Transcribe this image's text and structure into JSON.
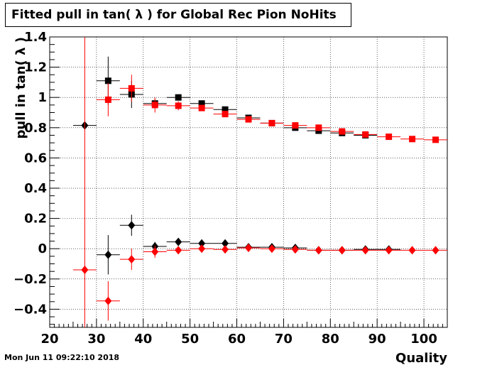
{
  "title": "Fitted pull in tan( λ ) for Global Rec Pion NoHits",
  "timestamp": "Mon Jun 11 09:22:10 2018",
  "chart_data": {
    "type": "scatter",
    "xlabel": "Quality",
    "ylabel": "pull in tan( λ )",
    "xlim": [
      20,
      105
    ],
    "ylim": [
      -0.52,
      1.4
    ],
    "x_ticks": [
      "20",
      "30",
      "40",
      "50",
      "60",
      "70",
      "80",
      "90",
      "100"
    ],
    "y_ticks": [
      "−0.4",
      "−0.2",
      "0",
      "0.2",
      "0.4",
      "0.6",
      "0.8",
      "1",
      "1.2",
      "1.4"
    ],
    "grid": true,
    "series": [
      {
        "marker": "square",
        "color": "#000000",
        "points": [
          {
            "x": 32.5,
            "y": 1.11,
            "yerr": 0.16
          },
          {
            "x": 37.5,
            "y": 1.02,
            "yerr": 0.09
          },
          {
            "x": 42.5,
            "y": 0.96,
            "yerr": 0.03
          },
          {
            "x": 47.5,
            "y": 1.0,
            "yerr": 0.02
          },
          {
            "x": 52.5,
            "y": 0.96,
            "yerr": 0.015
          },
          {
            "x": 57.5,
            "y": 0.92,
            "yerr": 0.015
          },
          {
            "x": 62.5,
            "y": 0.865,
            "yerr": 0.01
          },
          {
            "x": 67.5,
            "y": 0.83,
            "yerr": 0.01
          },
          {
            "x": 72.5,
            "y": 0.8,
            "yerr": 0.01
          },
          {
            "x": 77.5,
            "y": 0.78,
            "yerr": 0.01
          },
          {
            "x": 82.5,
            "y": 0.765,
            "yerr": 0.01
          },
          {
            "x": 87.5,
            "y": 0.75,
            "yerr": 0.01
          }
        ]
      },
      {
        "marker": "square",
        "color": "#ff0000",
        "points": [
          {
            "x": 32.5,
            "y": 0.985,
            "yerr": 0.11
          },
          {
            "x": 37.5,
            "y": 1.06,
            "yerr": 0.09
          },
          {
            "x": 42.5,
            "y": 0.95,
            "yerr": 0.05
          },
          {
            "x": 47.5,
            "y": 0.945,
            "yerr": 0.03
          },
          {
            "x": 52.5,
            "y": 0.93,
            "yerr": 0.02
          },
          {
            "x": 57.5,
            "y": 0.89,
            "yerr": 0.015
          },
          {
            "x": 62.5,
            "y": 0.855,
            "yerr": 0.01
          },
          {
            "x": 67.5,
            "y": 0.83,
            "yerr": 0.01
          },
          {
            "x": 72.5,
            "y": 0.815,
            "yerr": 0.01
          },
          {
            "x": 77.5,
            "y": 0.8,
            "yerr": 0.01
          },
          {
            "x": 82.5,
            "y": 0.775,
            "yerr": 0.01
          },
          {
            "x": 87.5,
            "y": 0.755,
            "yerr": 0.01
          },
          {
            "x": 92.5,
            "y": 0.74,
            "yerr": 0.01
          },
          {
            "x": 97.5,
            "y": 0.725,
            "yerr": 0.01
          },
          {
            "x": 102.5,
            "y": 0.72,
            "yerr": 0.01
          }
        ]
      },
      {
        "marker": "diamond",
        "color": "#000000",
        "points": [
          {
            "x": 27.5,
            "y": 0.815,
            "yerr": 0.0
          },
          {
            "x": 32.5,
            "y": -0.04,
            "yerr": 0.13
          },
          {
            "x": 37.5,
            "y": 0.155,
            "yerr": 0.07
          },
          {
            "x": 42.5,
            "y": 0.015,
            "yerr": 0.03
          },
          {
            "x": 47.5,
            "y": 0.045,
            "yerr": 0.02
          },
          {
            "x": 52.5,
            "y": 0.035,
            "yerr": 0.015
          },
          {
            "x": 57.5,
            "y": 0.035,
            "yerr": 0.015
          },
          {
            "x": 62.5,
            "y": 0.01,
            "yerr": 0.01
          },
          {
            "x": 67.5,
            "y": 0.01,
            "yerr": 0.01
          },
          {
            "x": 72.5,
            "y": 0.005,
            "yerr": 0.01
          },
          {
            "x": 77.5,
            "y": -0.01,
            "yerr": 0.01
          },
          {
            "x": 82.5,
            "y": -0.01,
            "yerr": 0.01
          },
          {
            "x": 87.5,
            "y": -0.005,
            "yerr": 0.01
          },
          {
            "x": 92.5,
            "y": -0.005,
            "yerr": 0.01
          }
        ]
      },
      {
        "marker": "diamond",
        "color": "#ff0000",
        "points": [
          {
            "x": 27.5,
            "y": -0.14,
            "yerr": 1.6
          },
          {
            "x": 32.5,
            "y": -0.345,
            "yerr": 0.13
          },
          {
            "x": 37.5,
            "y": -0.07,
            "yerr": 0.07
          },
          {
            "x": 42.5,
            "y": -0.02,
            "yerr": 0.04
          },
          {
            "x": 47.5,
            "y": -0.01,
            "yerr": 0.02
          },
          {
            "x": 52.5,
            "y": 0.0,
            "yerr": 0.015
          },
          {
            "x": 57.5,
            "y": -0.005,
            "yerr": 0.01
          },
          {
            "x": 62.5,
            "y": 0.005,
            "yerr": 0.01
          },
          {
            "x": 67.5,
            "y": 0.0,
            "yerr": 0.01
          },
          {
            "x": 72.5,
            "y": -0.005,
            "yerr": 0.01
          },
          {
            "x": 77.5,
            "y": -0.01,
            "yerr": 0.01
          },
          {
            "x": 82.5,
            "y": -0.01,
            "yerr": 0.01
          },
          {
            "x": 87.5,
            "y": -0.01,
            "yerr": 0.01
          },
          {
            "x": 92.5,
            "y": -0.01,
            "yerr": 0.01
          },
          {
            "x": 97.5,
            "y": -0.01,
            "yerr": 0.01
          },
          {
            "x": 102.5,
            "y": -0.01,
            "yerr": 0.01
          }
        ]
      }
    ]
  }
}
